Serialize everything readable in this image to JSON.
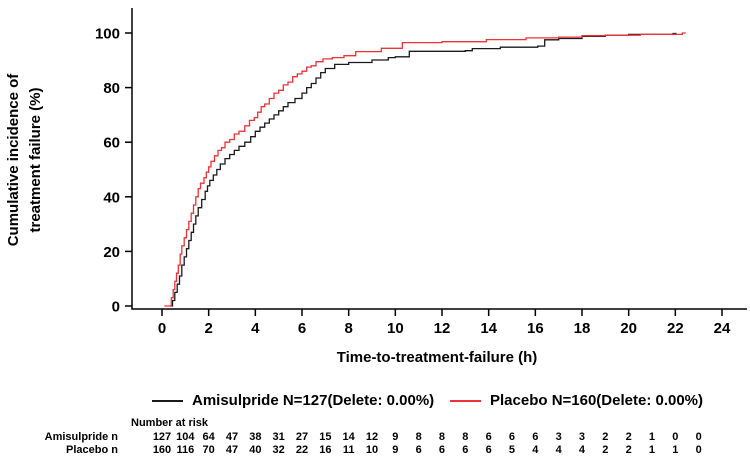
{
  "figure": {
    "y_axis_title_line1": "Cumulative incidence of",
    "y_axis_title_line2": "treatment failure (%)",
    "x_axis_title": "Time-to-treatment-failure (h)",
    "legend": [
      {
        "name": "amisulpride",
        "label": "Amisulpride N=127(Delete: 0.00%)",
        "color": "#1a1a1a"
      },
      {
        "name": "placebo",
        "label": "Placebo N=160(Delete: 0.00%)",
        "color": "#ed3237"
      }
    ],
    "number_at_risk": {
      "header": "Number at risk",
      "rows": [
        {
          "label": "Amisulpride n",
          "values": [
            127,
            104,
            64,
            47,
            38,
            31,
            27,
            15,
            14,
            12,
            9,
            8,
            8,
            8,
            6,
            6,
            6,
            3,
            3,
            2,
            2,
            1,
            0,
            0
          ]
        },
        {
          "label": "Placebo n",
          "values": [
            160,
            116,
            70,
            47,
            40,
            32,
            22,
            16,
            11,
            10,
            9,
            6,
            6,
            6,
            6,
            5,
            4,
            4,
            4,
            2,
            2,
            1,
            1,
            0
          ]
        }
      ]
    }
  },
  "chart_data": {
    "type": "line",
    "subtype": "step-cumulative-incidence",
    "title": "",
    "xlabel": "Time-to-treatment-failure (h)",
    "ylabel": "Cumulative incidence of treatment failure (%)",
    "xlim": [
      0,
      24
    ],
    "ylim": [
      0,
      100
    ],
    "xticks": [
      0,
      2,
      4,
      6,
      8,
      10,
      12,
      14,
      16,
      18,
      20,
      22,
      24
    ],
    "yticks": [
      0,
      20,
      40,
      60,
      80,
      100
    ],
    "grid": false,
    "legend_position": "below",
    "axis_color": "#000000",
    "series": [
      {
        "name": "Amisulpride N=127(Delete: 0.00%)",
        "color": "#1a1a1a",
        "points": [
          [
            0.35,
            0
          ],
          [
            0.45,
            2
          ],
          [
            0.55,
            5
          ],
          [
            0.65,
            8
          ],
          [
            0.75,
            11
          ],
          [
            0.85,
            15
          ],
          [
            0.95,
            18
          ],
          [
            1.05,
            21
          ],
          [
            1.15,
            24
          ],
          [
            1.25,
            27
          ],
          [
            1.35,
            30
          ],
          [
            1.45,
            33
          ],
          [
            1.55,
            36
          ],
          [
            1.7,
            39
          ],
          [
            1.85,
            42
          ],
          [
            1.95,
            44
          ],
          [
            2.05,
            46
          ],
          [
            2.2,
            48
          ],
          [
            2.35,
            50
          ],
          [
            2.5,
            52
          ],
          [
            2.7,
            54
          ],
          [
            2.9,
            55.5
          ],
          [
            3.1,
            57
          ],
          [
            3.3,
            58.5
          ],
          [
            3.55,
            60
          ],
          [
            3.8,
            62
          ],
          [
            4.0,
            64
          ],
          [
            4.2,
            65.5
          ],
          [
            4.4,
            67
          ],
          [
            4.6,
            68.5
          ],
          [
            4.8,
            70
          ],
          [
            5.0,
            71.5
          ],
          [
            5.2,
            73
          ],
          [
            5.4,
            74.5
          ],
          [
            5.7,
            76
          ],
          [
            6.0,
            78
          ],
          [
            6.2,
            80
          ],
          [
            6.4,
            81.5
          ],
          [
            6.6,
            83.5
          ],
          [
            6.8,
            85.5
          ],
          [
            7.0,
            87
          ],
          [
            7.4,
            88.5
          ],
          [
            8.0,
            89.2
          ],
          [
            9.0,
            90.1
          ],
          [
            9.7,
            91.0
          ],
          [
            10.0,
            91.3
          ],
          [
            10.6,
            93.3
          ],
          [
            13.0,
            93.5
          ],
          [
            13.3,
            94.3
          ],
          [
            14.5,
            94.8
          ],
          [
            16.1,
            95.2
          ],
          [
            16.4,
            97.5
          ],
          [
            17.0,
            98.0
          ],
          [
            18.0,
            98.8
          ],
          [
            19.0,
            99.2
          ],
          [
            20.0,
            99.5
          ],
          [
            21.9,
            99.8
          ],
          [
            22.05,
            99.8
          ]
        ]
      },
      {
        "name": "Placebo N=160(Delete: 0.00%)",
        "color": "#ed3237",
        "points": [
          [
            0.1,
            0
          ],
          [
            0.4,
            3
          ],
          [
            0.48,
            6
          ],
          [
            0.55,
            9
          ],
          [
            0.62,
            12
          ],
          [
            0.7,
            15
          ],
          [
            0.78,
            19
          ],
          [
            0.85,
            22
          ],
          [
            0.95,
            25
          ],
          [
            1.05,
            28
          ],
          [
            1.15,
            31
          ],
          [
            1.25,
            34
          ],
          [
            1.35,
            37
          ],
          [
            1.45,
            40
          ],
          [
            1.55,
            43
          ],
          [
            1.65,
            45
          ],
          [
            1.8,
            47
          ],
          [
            1.9,
            49
          ],
          [
            2.0,
            51
          ],
          [
            2.1,
            53
          ],
          [
            2.25,
            55
          ],
          [
            2.4,
            57
          ],
          [
            2.55,
            58
          ],
          [
            2.7,
            60
          ],
          [
            2.9,
            61
          ],
          [
            3.1,
            63
          ],
          [
            3.3,
            64
          ],
          [
            3.55,
            66
          ],
          [
            3.75,
            68
          ],
          [
            3.95,
            69
          ],
          [
            4.1,
            71
          ],
          [
            4.25,
            73
          ],
          [
            4.4,
            74
          ],
          [
            4.6,
            76
          ],
          [
            4.8,
            78
          ],
          [
            5.0,
            79
          ],
          [
            5.2,
            81
          ],
          [
            5.4,
            82
          ],
          [
            5.6,
            84
          ],
          [
            5.8,
            85
          ],
          [
            6.0,
            86
          ],
          [
            6.2,
            87.5
          ],
          [
            6.4,
            88
          ],
          [
            6.6,
            89.5
          ],
          [
            6.9,
            90.5
          ],
          [
            7.3,
            91
          ],
          [
            7.8,
            91.7
          ],
          [
            8.3,
            93.2
          ],
          [
            9.4,
            94.4
          ],
          [
            10.3,
            96.5
          ],
          [
            12.0,
            96.8
          ],
          [
            13.9,
            97.6
          ],
          [
            15.6,
            98.2
          ],
          [
            17.0,
            98.5
          ],
          [
            18.0,
            99.0
          ],
          [
            19.0,
            99.2
          ],
          [
            20.5,
            99.5
          ],
          [
            22.3,
            100
          ],
          [
            22.45,
            100
          ]
        ]
      }
    ]
  }
}
